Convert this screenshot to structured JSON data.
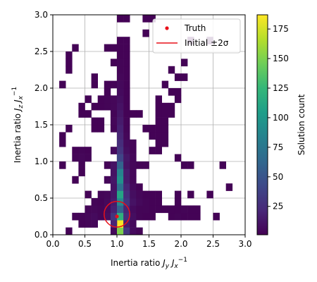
{
  "chart_data": {
    "type": "heatmap",
    "title": "",
    "xlabel_parts": [
      "Inertia ratio ",
      "J",
      "y",
      " ",
      "J",
      "x",
      "−1"
    ],
    "ylabel_parts": [
      "Inertia ratio ",
      "J",
      "z",
      " ",
      "J",
      "x",
      "−1"
    ],
    "xlim": [
      0,
      3
    ],
    "ylim": [
      0,
      3
    ],
    "x_ticks": [
      "0.0",
      "0.5",
      "1.0",
      "1.5",
      "2.0",
      "2.5",
      "3.0"
    ],
    "y_ticks": [
      "0.0",
      "0.5",
      "1.0",
      "1.5",
      "2.0",
      "2.5",
      "3.0"
    ],
    "grid": true,
    "bin_width": 0.1,
    "bin_height": 0.1,
    "colorbar": {
      "label": "Solution count",
      "min": 1,
      "max": 187,
      "ticks": [
        "25",
        "50",
        "75",
        "100",
        "125",
        "150",
        "175"
      ],
      "colormap": "viridis"
    },
    "bins": [
      [
        0.9,
        0.0,
        5
      ],
      [
        1.0,
        0.0,
        150
      ],
      [
        1.1,
        0.0,
        30
      ],
      [
        1.2,
        0.0,
        6
      ],
      [
        1.3,
        0.0,
        3
      ],
      [
        0.2,
        0.0,
        2
      ],
      [
        1.0,
        0.1,
        187
      ],
      [
        0.9,
        0.1,
        20
      ],
      [
        1.1,
        0.1,
        15
      ],
      [
        1.2,
        0.1,
        5
      ],
      [
        0.5,
        0.1,
        3
      ],
      [
        0.4,
        0.1,
        2
      ],
      [
        0.6,
        0.1,
        4
      ],
      [
        0.3,
        0.2,
        3
      ],
      [
        0.4,
        0.2,
        3
      ],
      [
        0.5,
        0.2,
        4
      ],
      [
        0.6,
        0.2,
        6
      ],
      [
        0.7,
        0.2,
        3
      ],
      [
        0.8,
        0.2,
        8
      ],
      [
        0.9,
        0.2,
        30
      ],
      [
        1.0,
        0.2,
        120
      ],
      [
        1.1,
        0.2,
        25
      ],
      [
        1.2,
        0.2,
        8
      ],
      [
        1.3,
        0.2,
        3
      ],
      [
        1.4,
        0.2,
        2
      ],
      [
        1.5,
        0.2,
        2
      ],
      [
        1.8,
        0.2,
        2
      ],
      [
        1.9,
        0.2,
        3
      ],
      [
        2.0,
        0.2,
        2
      ],
      [
        2.1,
        0.2,
        2
      ],
      [
        2.2,
        0.2,
        2
      ],
      [
        2.5,
        0.2,
        2
      ],
      [
        0.5,
        0.3,
        3
      ],
      [
        0.6,
        0.3,
        4
      ],
      [
        0.7,
        0.3,
        3
      ],
      [
        0.8,
        0.3,
        6
      ],
      [
        0.9,
        0.3,
        18
      ],
      [
        1.0,
        0.3,
        60
      ],
      [
        1.1,
        0.3,
        20
      ],
      [
        1.2,
        0.3,
        6
      ],
      [
        1.3,
        0.3,
        3
      ],
      [
        1.4,
        0.3,
        3
      ],
      [
        1.5,
        0.3,
        2
      ],
      [
        1.6,
        0.3,
        2
      ],
      [
        1.7,
        0.3,
        2
      ],
      [
        1.8,
        0.3,
        2
      ],
      [
        1.9,
        0.3,
        2
      ],
      [
        2.0,
        0.3,
        3
      ],
      [
        2.1,
        0.3,
        2
      ],
      [
        2.2,
        0.3,
        2
      ],
      [
        0.6,
        0.4,
        3
      ],
      [
        0.7,
        0.4,
        2
      ],
      [
        0.8,
        0.4,
        5
      ],
      [
        0.9,
        0.4,
        15
      ],
      [
        1.0,
        0.4,
        90
      ],
      [
        1.1,
        0.4,
        30
      ],
      [
        1.2,
        0.4,
        10
      ],
      [
        1.3,
        0.4,
        5
      ],
      [
        1.4,
        0.4,
        3
      ],
      [
        1.5,
        0.4,
        2
      ],
      [
        1.6,
        0.4,
        2
      ],
      [
        1.9,
        0.4,
        2
      ],
      [
        0.5,
        0.5,
        2
      ],
      [
        0.7,
        0.5,
        3
      ],
      [
        0.8,
        0.5,
        4
      ],
      [
        0.9,
        0.5,
        12
      ],
      [
        1.0,
        0.5,
        110
      ],
      [
        1.1,
        0.5,
        25
      ],
      [
        1.2,
        0.5,
        8
      ],
      [
        1.3,
        0.5,
        4
      ],
      [
        1.4,
        0.5,
        2
      ],
      [
        1.5,
        0.5,
        2
      ],
      [
        1.6,
        0.5,
        2
      ],
      [
        1.9,
        0.5,
        2
      ],
      [
        2.1,
        0.5,
        2
      ],
      [
        2.4,
        0.5,
        2
      ],
      [
        0.9,
        0.6,
        10
      ],
      [
        1.0,
        0.6,
        70
      ],
      [
        1.1,
        0.6,
        20
      ],
      [
        1.2,
        0.6,
        6
      ],
      [
        1.3,
        0.6,
        2
      ],
      [
        2.7,
        0.6,
        2
      ],
      [
        0.8,
        0.7,
        4
      ],
      [
        0.9,
        0.7,
        12
      ],
      [
        1.0,
        0.7,
        95
      ],
      [
        1.1,
        0.7,
        15
      ],
      [
        1.2,
        0.7,
        4
      ],
      [
        0.3,
        0.7,
        2
      ],
      [
        0.9,
        0.8,
        10
      ],
      [
        1.0,
        0.8,
        85
      ],
      [
        1.1,
        0.8,
        15
      ],
      [
        1.2,
        0.8,
        4
      ],
      [
        0.4,
        0.8,
        2
      ],
      [
        0.1,
        0.9,
        2
      ],
      [
        0.4,
        0.9,
        3
      ],
      [
        0.8,
        0.9,
        3
      ],
      [
        0.9,
        0.9,
        10
      ],
      [
        1.0,
        0.9,
        60
      ],
      [
        1.1,
        0.9,
        10
      ],
      [
        1.2,
        0.9,
        4
      ],
      [
        1.3,
        0.9,
        2
      ],
      [
        1.4,
        0.9,
        2
      ],
      [
        2.0,
        0.9,
        2
      ],
      [
        2.1,
        0.9,
        2
      ],
      [
        2.6,
        0.9,
        2
      ],
      [
        0.3,
        1.0,
        3
      ],
      [
        0.4,
        1.0,
        4
      ],
      [
        0.5,
        1.0,
        3
      ],
      [
        1.0,
        1.0,
        40
      ],
      [
        1.1,
        1.0,
        12
      ],
      [
        1.2,
        1.0,
        4
      ],
      [
        1.9,
        1.0,
        2
      ],
      [
        0.3,
        1.1,
        2
      ],
      [
        0.4,
        1.1,
        3
      ],
      [
        0.5,
        1.1,
        2
      ],
      [
        0.9,
        1.1,
        6
      ],
      [
        1.0,
        1.1,
        30
      ],
      [
        1.1,
        1.1,
        8
      ],
      [
        1.2,
        1.1,
        3
      ],
      [
        1.5,
        1.1,
        2
      ],
      [
        1.6,
        1.1,
        2
      ],
      [
        0.1,
        1.2,
        2
      ],
      [
        1.0,
        1.2,
        25
      ],
      [
        1.1,
        1.2,
        6
      ],
      [
        1.2,
        1.2,
        3
      ],
      [
        1.6,
        1.2,
        2
      ],
      [
        1.7,
        1.2,
        2
      ],
      [
        0.1,
        1.3,
        2
      ],
      [
        1.0,
        1.3,
        20
      ],
      [
        1.1,
        1.3,
        4
      ],
      [
        1.5,
        1.3,
        2
      ],
      [
        1.6,
        1.3,
        2
      ],
      [
        1.7,
        1.3,
        2
      ],
      [
        0.2,
        1.4,
        2
      ],
      [
        0.6,
        1.4,
        2
      ],
      [
        0.7,
        1.4,
        2
      ],
      [
        0.9,
        1.4,
        3
      ],
      [
        1.0,
        1.4,
        18
      ],
      [
        1.1,
        1.4,
        3
      ],
      [
        1.4,
        1.4,
        2
      ],
      [
        1.5,
        1.4,
        2
      ],
      [
        1.6,
        1.4,
        2
      ],
      [
        1.7,
        1.4,
        2
      ],
      [
        0.6,
        1.5,
        2
      ],
      [
        0.7,
        1.5,
        2
      ],
      [
        0.9,
        1.5,
        4
      ],
      [
        1.0,
        1.5,
        15
      ],
      [
        1.1,
        1.5,
        3
      ],
      [
        1.6,
        1.5,
        2
      ],
      [
        1.7,
        1.5,
        2
      ],
      [
        0.4,
        1.6,
        2
      ],
      [
        0.5,
        1.6,
        2
      ],
      [
        0.9,
        1.6,
        3
      ],
      [
        1.0,
        1.6,
        12
      ],
      [
        1.1,
        1.6,
        2
      ],
      [
        1.2,
        1.6,
        2
      ],
      [
        1.3,
        1.6,
        2
      ],
      [
        1.6,
        1.6,
        2
      ],
      [
        1.7,
        1.6,
        2
      ],
      [
        1.8,
        1.6,
        2
      ],
      [
        0.4,
        1.7,
        2
      ],
      [
        0.6,
        1.7,
        2
      ],
      [
        0.7,
        1.7,
        2
      ],
      [
        0.8,
        1.7,
        3
      ],
      [
        0.9,
        1.7,
        4
      ],
      [
        1.0,
        1.7,
        10
      ],
      [
        1.1,
        1.7,
        2
      ],
      [
        1.6,
        1.7,
        2
      ],
      [
        1.7,
        1.7,
        2
      ],
      [
        1.8,
        1.7,
        2
      ],
      [
        0.5,
        1.8,
        2
      ],
      [
        0.7,
        1.8,
        2
      ],
      [
        0.8,
        1.8,
        3
      ],
      [
        0.9,
        1.8,
        4
      ],
      [
        1.0,
        1.8,
        8
      ],
      [
        1.1,
        1.8,
        2
      ],
      [
        1.6,
        1.8,
        2
      ],
      [
        1.9,
        1.8,
        2
      ],
      [
        0.8,
        1.9,
        2
      ],
      [
        1.0,
        1.9,
        6
      ],
      [
        1.1,
        1.9,
        2
      ],
      [
        1.8,
        1.9,
        2
      ],
      [
        1.9,
        1.9,
        2
      ],
      [
        0.6,
        2.0,
        2
      ],
      [
        0.8,
        2.0,
        2
      ],
      [
        0.9,
        2.0,
        2
      ],
      [
        1.0,
        2.0,
        5
      ],
      [
        1.1,
        2.0,
        2
      ],
      [
        1.7,
        2.0,
        2
      ],
      [
        0.1,
        2.0,
        2
      ],
      [
        0.6,
        2.1,
        2
      ],
      [
        1.0,
        2.1,
        4
      ],
      [
        1.1,
        2.1,
        2
      ],
      [
        1.9,
        2.1,
        2
      ],
      [
        2.0,
        2.1,
        2
      ],
      [
        1.0,
        2.2,
        3
      ],
      [
        1.1,
        2.2,
        2
      ],
      [
        0.2,
        2.2,
        2
      ],
      [
        1.8,
        2.2,
        2
      ],
      [
        0.2,
        2.3,
        2
      ],
      [
        0.9,
        2.3,
        2
      ],
      [
        1.0,
        2.3,
        3
      ],
      [
        1.1,
        2.3,
        2
      ],
      [
        2.0,
        2.3,
        2
      ],
      [
        0.2,
        2.4,
        2
      ],
      [
        1.0,
        2.4,
        2
      ],
      [
        1.1,
        2.4,
        2
      ],
      [
        0.3,
        2.5,
        2
      ],
      [
        0.8,
        2.5,
        2
      ],
      [
        0.9,
        2.5,
        2
      ],
      [
        1.0,
        2.5,
        2
      ],
      [
        1.1,
        2.5,
        2
      ],
      [
        1.0,
        2.6,
        2
      ],
      [
        1.1,
        2.6,
        2
      ],
      [
        2.4,
        2.6,
        4
      ],
      [
        2.1,
        2.6,
        2
      ],
      [
        1.4,
        2.7,
        2
      ],
      [
        1.0,
        2.9,
        2
      ],
      [
        1.1,
        2.9,
        2
      ],
      [
        1.4,
        2.9,
        2
      ],
      [
        1.5,
        2.9,
        2
      ]
    ],
    "legend": {
      "placement": "top-right",
      "entries": [
        {
          "name": "Truth",
          "marker": "dot",
          "color": "#e8101a"
        },
        {
          "name": "Initial ±2σ",
          "marker": "line",
          "color": "#e8101a"
        }
      ]
    },
    "truth_point": {
      "x": 1.0,
      "y": 0.25
    },
    "initial_circle": {
      "cx": 1.0,
      "cy": 0.28,
      "r": 0.2
    },
    "colors": {
      "truth": "#e8101a",
      "grid": "#b0b0b0"
    }
  }
}
